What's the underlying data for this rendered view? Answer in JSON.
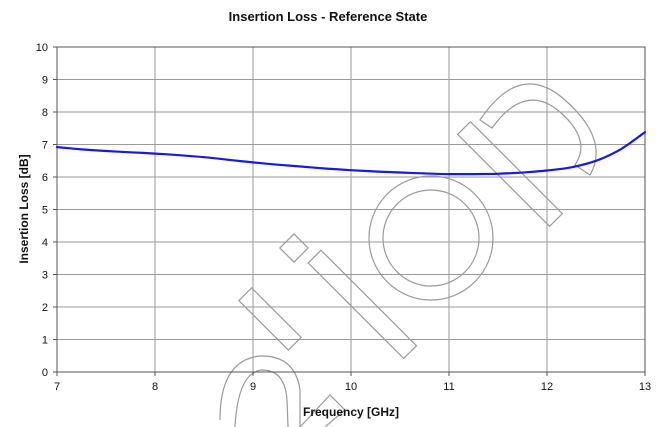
{
  "chart_data": {
    "type": "line",
    "title": "Insertion Loss - Reference State",
    "xlabel": "Frequency [GHz]",
    "ylabel": "Insertion Loss [dB]",
    "xlim": [
      7,
      13
    ],
    "ylim": [
      0,
      10
    ],
    "xticks": [
      "7",
      "8",
      "9",
      "10",
      "11",
      "12",
      "13"
    ],
    "yticks": [
      "0",
      "1",
      "2",
      "3",
      "4",
      "5",
      "6",
      "7",
      "8",
      "9",
      "10"
    ],
    "grid": true,
    "legend": "none",
    "color": "#1a1adc",
    "series": [
      {
        "x": [
          7.0,
          7.25,
          7.5,
          7.75,
          8.0,
          8.25,
          8.5,
          8.75,
          9.0,
          9.25,
          9.5,
          9.75,
          10.0,
          10.25,
          10.5,
          10.75,
          11.0,
          11.25,
          11.5,
          11.75,
          12.0,
          12.25,
          12.5,
          12.75,
          13.0
        ],
        "y": [
          6.92,
          6.85,
          6.8,
          6.76,
          6.72,
          6.67,
          6.61,
          6.53,
          6.45,
          6.38,
          6.32,
          6.26,
          6.21,
          6.17,
          6.14,
          6.11,
          6.09,
          6.09,
          6.1,
          6.14,
          6.2,
          6.3,
          6.5,
          6.85,
          7.38
        ]
      }
    ]
  }
}
